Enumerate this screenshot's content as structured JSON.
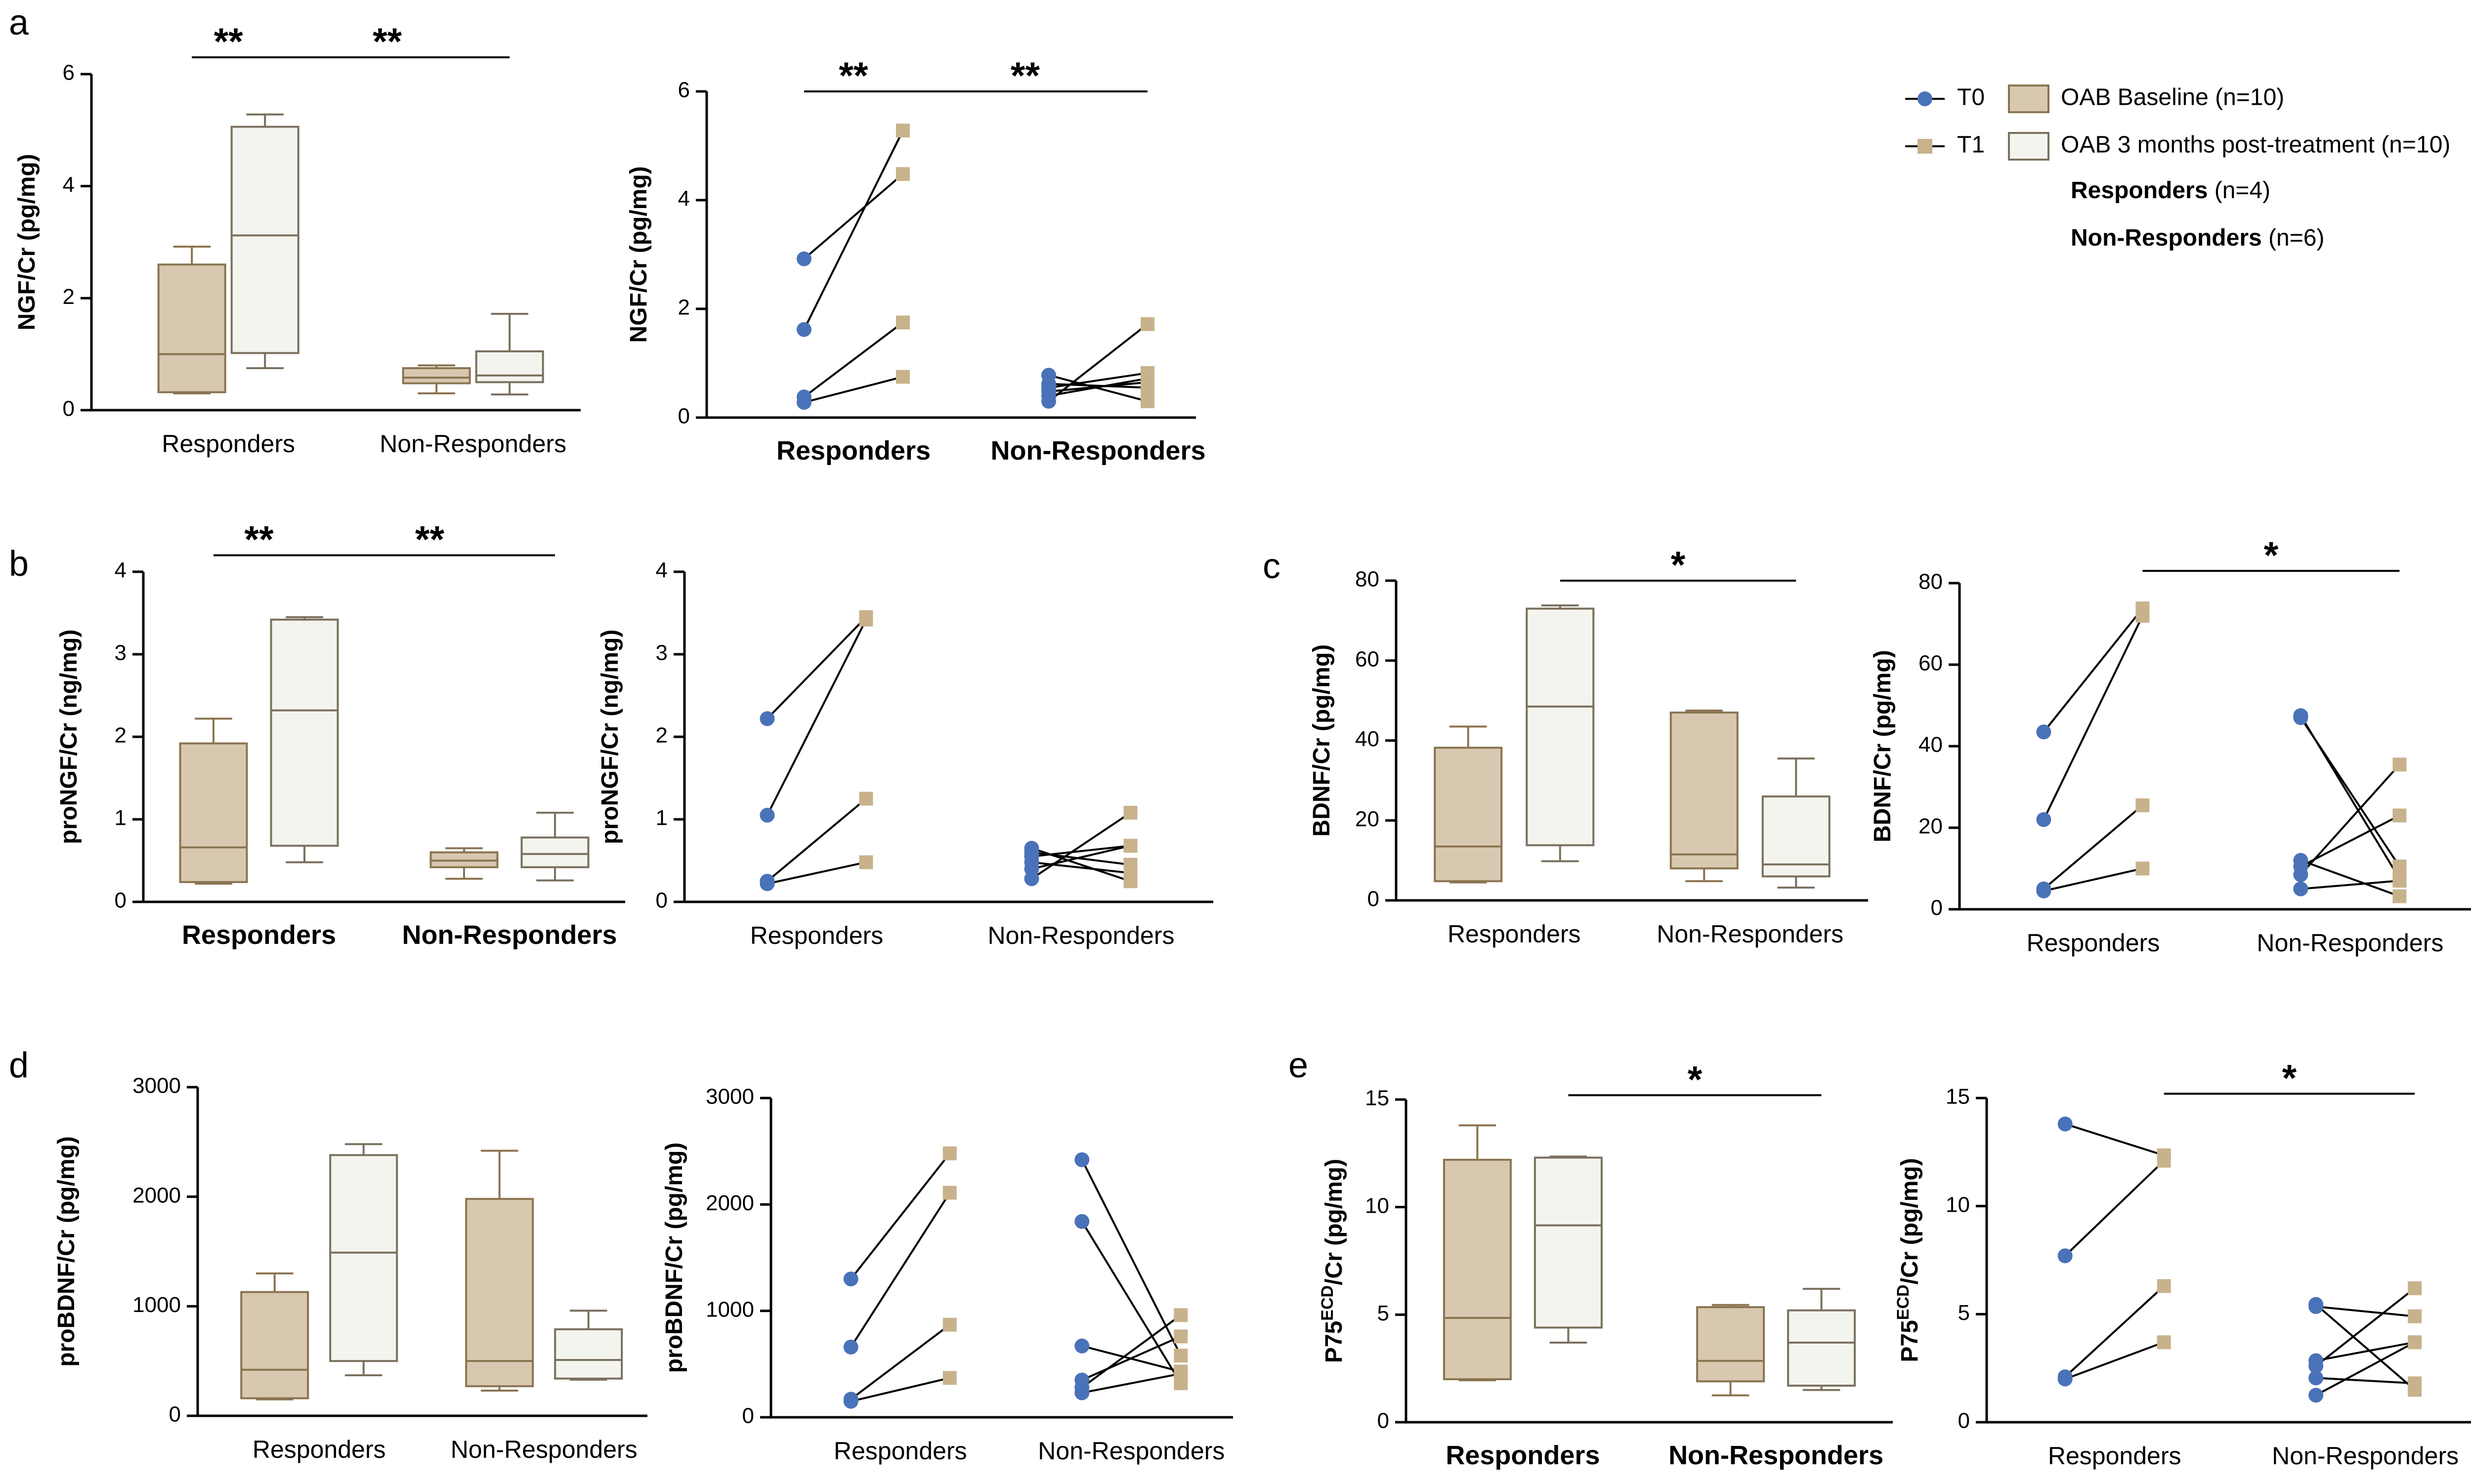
{
  "colors": {
    "baseline_fill": "#d8c8b0",
    "baseline_edge": "#8a7450",
    "post_fill": "#f4f4ef",
    "post_edge": "#7a705e",
    "t0": "#4a72b8",
    "t1": "#c8b28c"
  },
  "legend": {
    "t0": "T0",
    "t1": "T1",
    "baseline": "OAB Baseline (n=10)",
    "post": "OAB 3 months post-treatment (n=10)",
    "responders_bold": "Responders",
    "responders_n": " (n=4)",
    "nonresponders_bold": "Non-Responders",
    "nonresponders_n": " (n=6)"
  },
  "chart_data": [
    {
      "id": "a1",
      "panel": "a",
      "type": "box",
      "ylabel": "NGF/Cr (pg/mg)",
      "ylim": [
        0,
        6
      ],
      "yticks": [
        "0",
        "2",
        "4",
        "6"
      ],
      "categories": [
        "Responders",
        "Non-Responders"
      ],
      "series": [
        {
          "name": "OAB Baseline (n=10)",
          "boxes": [
            [
              0.3,
              0.32,
              1.0,
              2.6,
              2.92
            ],
            [
              0.3,
              0.48,
              0.58,
              0.75,
              0.8
            ]
          ]
        },
        {
          "name": "OAB 3 months post-treatment (n=10)",
          "boxes": [
            [
              0.75,
              1.02,
              3.12,
              5.06,
              5.28
            ],
            [
              0.28,
              0.5,
              0.62,
              1.05,
              1.72
            ]
          ]
        }
      ],
      "significance": [
        {
          "label": "**",
          "from": [
            0,
            0
          ],
          "to": [
            0,
            1
          ],
          "y": 6.3
        },
        {
          "label": "**",
          "from": [
            0,
            1
          ],
          "to": [
            1,
            1
          ],
          "y": 6.3
        }
      ]
    },
    {
      "id": "a2",
      "panel": "",
      "type": "paired",
      "ylabel": "NGF/Cr (pg/mg)",
      "ylim": [
        0,
        6
      ],
      "yticks": [
        "0",
        "2",
        "4",
        "6"
      ],
      "categories": [
        "Responders",
        "Non-Responders"
      ],
      "pairs": [
        [
          [
            2.92,
            4.48
          ],
          [
            1.62,
            5.28
          ],
          [
            0.38,
            1.75
          ],
          [
            0.28,
            0.75
          ]
        ],
        [
          [
            0.78,
            0.3
          ],
          [
            0.62,
            0.55
          ],
          [
            0.55,
            0.82
          ],
          [
            0.48,
            0.65
          ],
          [
            0.4,
            0.72
          ],
          [
            0.3,
            1.72
          ]
        ]
      ],
      "significance": [
        {
          "label": "**",
          "from": [
            0,
            0
          ],
          "to": [
            0,
            1
          ],
          "y": 6.0
        },
        {
          "label": "**",
          "from": [
            0,
            1
          ],
          "to": [
            1,
            1
          ],
          "y": 6.0
        }
      ]
    },
    {
      "id": "b1",
      "panel": "b",
      "type": "box",
      "ylabel": "proNGF/Cr (ng/mg)",
      "ylim": [
        0,
        4
      ],
      "yticks": [
        "0",
        "1",
        "2",
        "3",
        "4"
      ],
      "categories": [
        "Responders",
        "Non-Responders"
      ],
      "series": [
        {
          "name": "OAB Baseline (n=10)",
          "boxes": [
            [
              0.22,
              0.24,
              0.66,
              1.92,
              2.22
            ],
            [
              0.28,
              0.42,
              0.5,
              0.6,
              0.65
            ]
          ]
        },
        {
          "name": "OAB 3 months post-treatment (n=10)",
          "boxes": [
            [
              0.48,
              0.68,
              2.32,
              3.42,
              3.45
            ],
            [
              0.26,
              0.42,
              0.58,
              0.78,
              1.08
            ]
          ]
        }
      ],
      "significance": [
        {
          "label": "**",
          "from": [
            0,
            0
          ],
          "to": [
            0,
            1
          ],
          "y": 4.2
        },
        {
          "label": "**",
          "from": [
            0,
            1
          ],
          "to": [
            1,
            1
          ],
          "y": 4.2
        }
      ]
    },
    {
      "id": "b2",
      "panel": "",
      "type": "paired",
      "ylabel": "proNGF/Cr (ng/mg)",
      "ylim": [
        0,
        4
      ],
      "yticks": [
        "0",
        "1",
        "2",
        "3",
        "4"
      ],
      "categories": [
        "Responders",
        "Non-Responders"
      ],
      "pairs": [
        [
          [
            2.22,
            3.45
          ],
          [
            1.05,
            3.42
          ],
          [
            0.25,
            1.25
          ],
          [
            0.22,
            0.48
          ]
        ],
        [
          [
            0.65,
            0.25
          ],
          [
            0.6,
            0.45
          ],
          [
            0.55,
            0.68
          ],
          [
            0.48,
            0.35
          ],
          [
            0.4,
            0.68
          ],
          [
            0.28,
            1.08
          ]
        ]
      ],
      "significance": []
    },
    {
      "id": "c1",
      "panel": "c",
      "type": "box",
      "ylabel": "BDNF/Cr (pg/mg)",
      "ylim": [
        0,
        80
      ],
      "yticks": [
        "0",
        "20",
        "40",
        "60",
        "80"
      ],
      "categories": [
        "Responders",
        "Non-Responders"
      ],
      "series": [
        {
          "name": "OAB Baseline (n=10)",
          "boxes": [
            [
              4.5,
              4.8,
              13.5,
              38.2,
              43.5
            ],
            [
              4.8,
              8.0,
              11.5,
              47.0,
              47.5
            ]
          ]
        },
        {
          "name": "OAB 3 months post-treatment (n=10)",
          "boxes": [
            [
              9.8,
              13.8,
              48.5,
              73.0,
              73.8
            ],
            [
              3.2,
              6.0,
              9.0,
              26.0,
              35.5
            ]
          ]
        }
      ],
      "significance": [
        {
          "label": "*",
          "from": [
            0,
            1
          ],
          "to": [
            1,
            1
          ],
          "y": 80
        }
      ]
    },
    {
      "id": "c2",
      "panel": "",
      "type": "paired",
      "ylabel": "BDNF/Cr (pg/mg)",
      "ylim": [
        0,
        80
      ],
      "yticks": [
        "0",
        "20",
        "40",
        "60",
        "80"
      ],
      "categories": [
        "Responders",
        "Non-Responders"
      ],
      "pairs": [
        [
          [
            43.5,
            73.8
          ],
          [
            22.0,
            72.0
          ],
          [
            5.0,
            25.5
          ],
          [
            4.5,
            10.0
          ]
        ],
        [
          [
            47.5,
            7.5
          ],
          [
            47.0,
            10.5
          ],
          [
            12.0,
            3.2
          ],
          [
            10.5,
            23.0
          ],
          [
            8.5,
            35.5
          ],
          [
            5.0,
            7.0
          ]
        ]
      ],
      "significance": [
        {
          "label": "*",
          "from": [
            0,
            1
          ],
          "to": [
            1,
            1
          ],
          "y": 83
        }
      ]
    },
    {
      "id": "d1",
      "panel": "d",
      "type": "box",
      "ylabel": "proBDNF/Cr (pg/mg)",
      "ylim": [
        0,
        3000
      ],
      "yticks": [
        "0",
        "1000",
        "2000",
        "3000"
      ],
      "categories": [
        "Responders",
        "Non-Responders"
      ],
      "series": [
        {
          "name": "OAB Baseline (n=10)",
          "boxes": [
            [
              150,
              160,
              420,
              1130,
              1300
            ],
            [
              230,
              270,
              500,
              1980,
              2420
            ]
          ]
        },
        {
          "name": "OAB 3 months post-treatment (n=10)",
          "boxes": [
            [
              370,
              500,
              1490,
              2380,
              2480
            ],
            [
              330,
              340,
              510,
              790,
              960
            ]
          ]
        }
      ],
      "significance": []
    },
    {
      "id": "d2",
      "panel": "",
      "type": "paired",
      "ylabel": "proBDNF/Cr (pg/mg)",
      "ylim": [
        0,
        3000
      ],
      "yticks": [
        "0",
        "1000",
        "2000",
        "3000"
      ],
      "categories": [
        "Responders",
        "Non-Responders"
      ],
      "pairs": [
        [
          [
            1300,
            2480
          ],
          [
            660,
            2110
          ],
          [
            170,
            870
          ],
          [
            150,
            370
          ]
        ],
        [
          [
            2420,
            580
          ],
          [
            1840,
            320
          ],
          [
            670,
            430
          ],
          [
            350,
            760
          ],
          [
            280,
            960
          ],
          [
            230,
            410
          ]
        ]
      ],
      "significance": []
    },
    {
      "id": "e1",
      "panel": "e",
      "type": "box",
      "ylabel": "P75ECD/Cr (pg/mg)",
      "ylim": [
        0,
        15
      ],
      "yticks": [
        "0",
        "5",
        "10",
        "15"
      ],
      "categories": [
        "Responders",
        "Non-Responders"
      ],
      "series": [
        {
          "name": "OAB Baseline (n=10)",
          "boxes": [
            [
              1.95,
              2.0,
              4.85,
              12.2,
              13.8
            ],
            [
              1.25,
              1.9,
              2.85,
              5.35,
              5.45
            ]
          ]
        },
        {
          "name": "OAB 3 months post-treatment (n=10)",
          "boxes": [
            [
              3.7,
              4.4,
              9.15,
              12.3,
              12.35
            ],
            [
              1.5,
              1.7,
              3.7,
              5.2,
              6.2
            ]
          ]
        }
      ],
      "significance": [
        {
          "label": "*",
          "from": [
            0,
            1
          ],
          "to": [
            1,
            1
          ],
          "y": 15.2
        }
      ]
    },
    {
      "id": "e2",
      "panel": "",
      "type": "paired",
      "ylabel": "P75ECD/Cr (pg/mg)",
      "ylim": [
        0,
        15
      ],
      "yticks": [
        "0",
        "5",
        "10",
        "15"
      ],
      "categories": [
        "Responders",
        "Non-Responders"
      ],
      "pairs": [
        [
          [
            13.8,
            12.35
          ],
          [
            7.7,
            12.1
          ],
          [
            2.1,
            6.3
          ],
          [
            2.0,
            3.7
          ]
        ],
        [
          [
            5.45,
            1.5
          ],
          [
            5.35,
            4.9
          ],
          [
            2.85,
            3.7
          ],
          [
            2.6,
            6.2
          ],
          [
            2.05,
            1.8
          ],
          [
            1.25,
            3.7
          ]
        ]
      ],
      "significance": [
        {
          "label": "*",
          "from": [
            0,
            1
          ],
          "to": [
            1,
            1
          ],
          "y": 15.2
        }
      ]
    }
  ]
}
